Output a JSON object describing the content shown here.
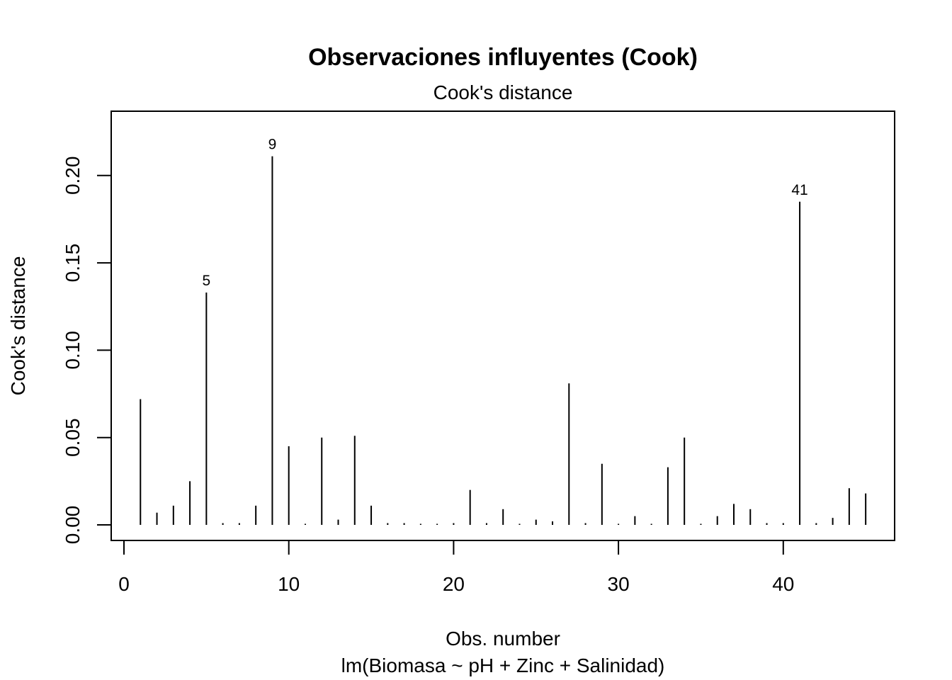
{
  "chart_data": {
    "type": "bar",
    "title": "Observaciones influyentes (Cook)",
    "subtitle": "Cook's distance",
    "xlabel": "Obs. number",
    "xlabel_sub": "lm(Biomasa ~ pH + Zinc + Salinidad)",
    "ylabel": "Cook's distance",
    "xlim": [
      0,
      46
    ],
    "ylim": [
      0,
      0.22
    ],
    "x_ticks": [
      0,
      10,
      20,
      30,
      40
    ],
    "y_ticks": [
      "0.00",
      "0.05",
      "0.10",
      "0.15",
      "0.20"
    ],
    "x": [
      1,
      2,
      3,
      4,
      5,
      6,
      7,
      8,
      9,
      10,
      11,
      12,
      13,
      14,
      15,
      16,
      17,
      18,
      19,
      20,
      21,
      22,
      23,
      24,
      25,
      26,
      27,
      28,
      29,
      30,
      31,
      32,
      33,
      34,
      35,
      36,
      37,
      38,
      39,
      40,
      41,
      42,
      43,
      44,
      45
    ],
    "values": [
      0.072,
      0.007,
      0.011,
      0.025,
      0.133,
      0.001,
      0.001,
      0.011,
      0.211,
      0.045,
      0.0003,
      0.05,
      0.003,
      0.051,
      0.011,
      0.001,
      0.001,
      0.0003,
      0.0003,
      0.001,
      0.02,
      0.001,
      0.009,
      0.0003,
      0.003,
      0.002,
      0.081,
      0.001,
      0.035,
      0.0003,
      0.005,
      0.0003,
      0.033,
      0.05,
      0.0003,
      0.005,
      0.012,
      0.009,
      0.001,
      0.001,
      0.185,
      0.001,
      0.004,
      0.021,
      0.018
    ],
    "point_labels": [
      {
        "obs": 5,
        "text": "5"
      },
      {
        "obs": 9,
        "text": "9"
      },
      {
        "obs": 41,
        "text": "41"
      }
    ],
    "grid": false,
    "colors": {
      "bars": "#000000",
      "background": "#ffffff"
    }
  }
}
